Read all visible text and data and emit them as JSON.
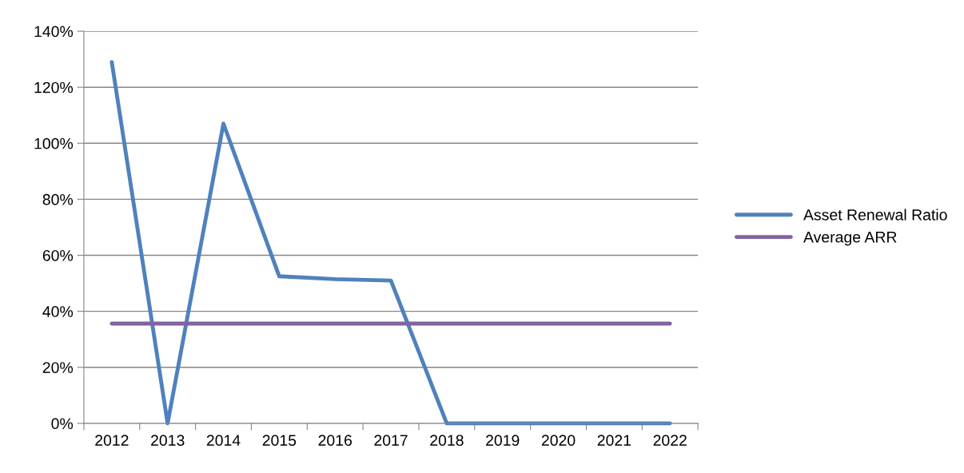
{
  "chart_data": {
    "type": "line",
    "categories": [
      "2012",
      "2013",
      "2014",
      "2015",
      "2016",
      "2017",
      "2018",
      "2019",
      "2020",
      "2021",
      "2022"
    ],
    "series": [
      {
        "name": "Asset Renewal Ratio",
        "color": "#4f81bd",
        "values": [
          129,
          0,
          107,
          52.5,
          51.5,
          51,
          0,
          0,
          0,
          0,
          0
        ]
      },
      {
        "name": "Average ARR",
        "color": "#8064a2",
        "values": [
          35.6,
          35.6,
          35.6,
          35.6,
          35.6,
          35.6,
          35.6,
          35.6,
          35.6,
          35.6,
          35.6
        ]
      }
    ],
    "ylim": [
      0,
      140
    ],
    "yticks": [
      {
        "value": 0,
        "label": "0%"
      },
      {
        "value": 20,
        "label": "20%"
      },
      {
        "value": 40,
        "label": "40%"
      },
      {
        "value": 60,
        "label": "60%"
      },
      {
        "value": 80,
        "label": "80%"
      },
      {
        "value": 100,
        "label": "100%"
      },
      {
        "value": 120,
        "label": "120%"
      },
      {
        "value": 140,
        "label": "140%"
      }
    ],
    "grid": "y",
    "legend": "right",
    "marker": "none",
    "line_style": "solid"
  }
}
